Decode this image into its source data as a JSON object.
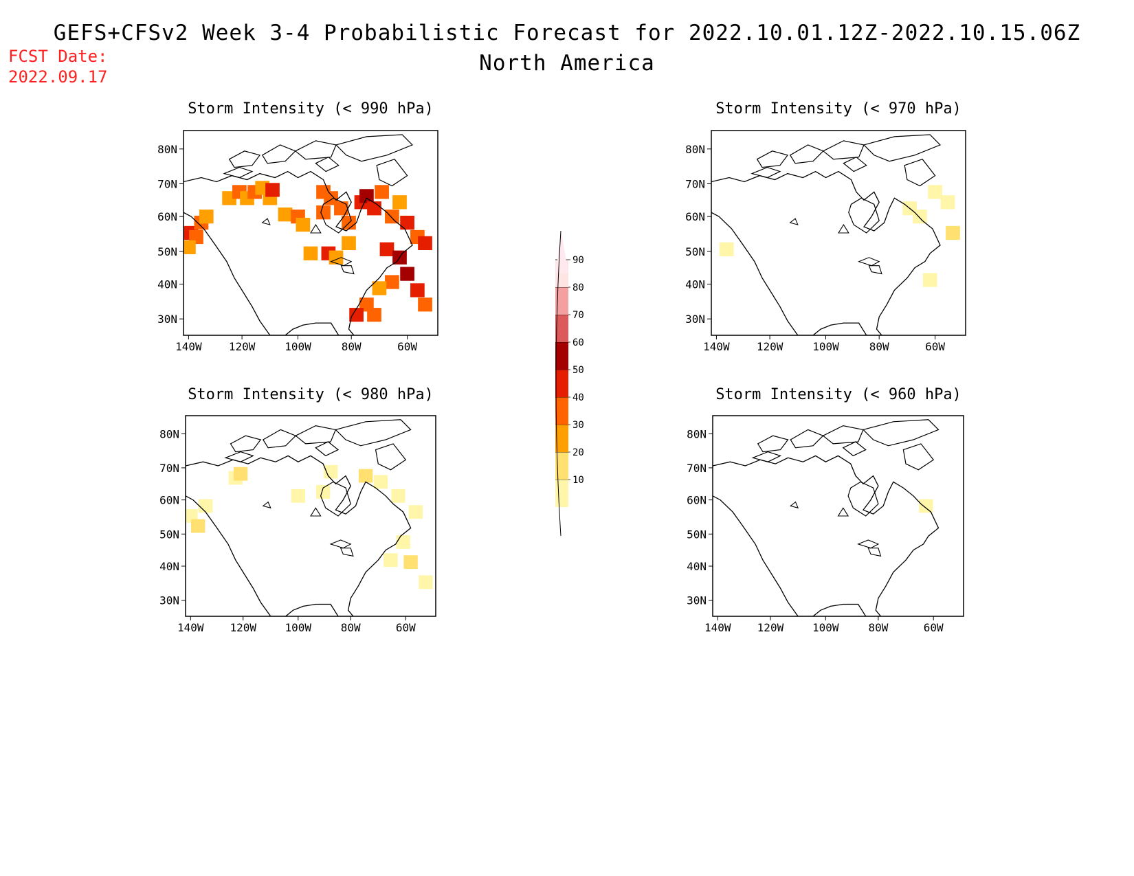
{
  "header": {
    "title": "GEFS+CFSv2 Week 3-4 Probabilistic Forecast for 2022.10.01.12Z-2022.10.15.06Z",
    "subtitle": "North America",
    "fcst_label": "FCST Date:",
    "fcst_date": "2022.09.17"
  },
  "panels": [
    {
      "title": "Storm Intensity (< 990 hPa)",
      "intensity": "high"
    },
    {
      "title": "Storm Intensity (< 970 hPa)",
      "intensity": "low"
    },
    {
      "title": "Storm Intensity (< 980 hPa)",
      "intensity": "medium"
    },
    {
      "title": "Storm Intensity (< 960 hPa)",
      "intensity": "minimal"
    }
  ],
  "axes": {
    "lat_labels": [
      "80N",
      "70N",
      "60N",
      "50N",
      "40N",
      "30N"
    ],
    "lon_labels": [
      "140W",
      "120W",
      "100W",
      "80W",
      "60W"
    ]
  },
  "colorbar": {
    "levels": [
      "10",
      "20",
      "30",
      "40",
      "50",
      "60",
      "70",
      "80",
      "90"
    ],
    "colors": [
      "#fff6aa",
      "#ffe070",
      "#ffa000",
      "#ff6400",
      "#e61e00",
      "#a50000",
      "#dc5a5a",
      "#f5a0a0",
      "#ffe4e4"
    ]
  },
  "map_colors": {
    "coast": "#000000",
    "frame": "#000000"
  }
}
